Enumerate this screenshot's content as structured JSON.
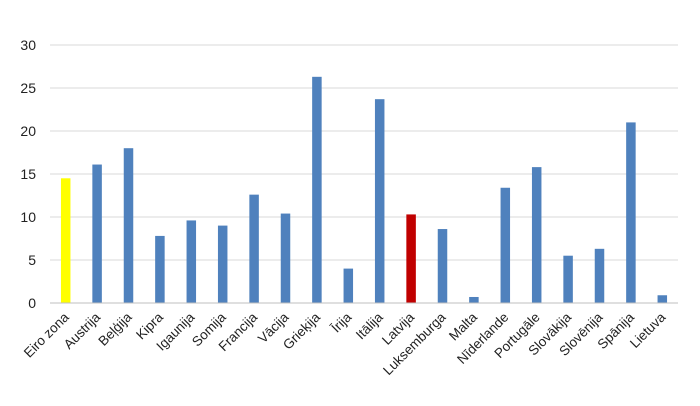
{
  "chart_data": {
    "type": "bar",
    "categories": [
      "Eiro zona",
      "Austrija",
      "Beļģija",
      "Kipra",
      "Igaunija",
      "Somija",
      "Francija",
      "Vācija",
      "Grieķija",
      "Īrija",
      "Itālija",
      "Latvija",
      "Luksemburga",
      "Malta",
      "Nīderlande",
      "Portugāle",
      "Slovākija",
      "Slovēnija",
      "Spānija",
      "Lietuva"
    ],
    "values": [
      14.5,
      16.1,
      18.0,
      7.8,
      9.6,
      9.0,
      12.6,
      10.4,
      26.3,
      4.0,
      23.7,
      10.3,
      8.6,
      0.7,
      13.4,
      15.8,
      5.5,
      6.3,
      21.0,
      0.9
    ],
    "colors": [
      "#FFFF00",
      "#4F81BD",
      "#4F81BD",
      "#4F81BD",
      "#4F81BD",
      "#4F81BD",
      "#4F81BD",
      "#4F81BD",
      "#4F81BD",
      "#4F81BD",
      "#4F81BD",
      "#C00000",
      "#4F81BD",
      "#4F81BD",
      "#4F81BD",
      "#4F81BD",
      "#4F81BD",
      "#4F81BD",
      "#4F81BD",
      "#4F81BD"
    ],
    "yticks": [
      "0",
      "5",
      "10",
      "15",
      "20",
      "25",
      "30"
    ],
    "ylim": [
      0,
      30
    ],
    "grid": true,
    "title": "",
    "xlabel": "",
    "ylabel": ""
  }
}
